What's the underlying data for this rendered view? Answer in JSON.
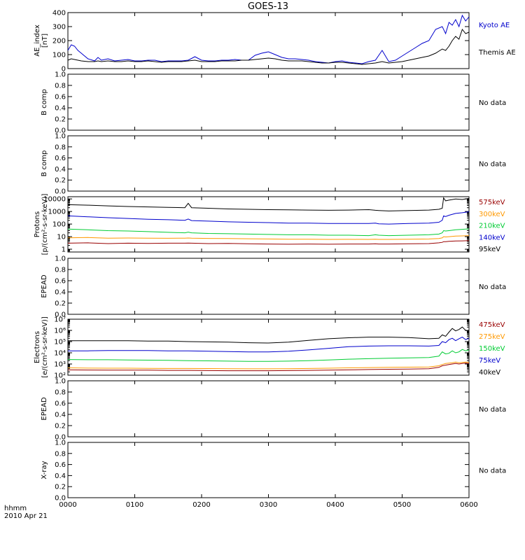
{
  "title": "GOES-13",
  "footer": {
    "line1": "hhmm",
    "line2": "2010 Apr 21"
  },
  "chart_data": [
    {
      "type": "line",
      "panel": "ae",
      "ylabel": [
        "AE_index",
        "[nT]"
      ],
      "ylim": [
        0,
        400
      ],
      "yscale": "linear",
      "yticks": [
        "0",
        "100",
        "200",
        "300",
        "400"
      ],
      "ytick_values": [
        0,
        100,
        200,
        300,
        400
      ],
      "x": [
        0,
        5,
        10,
        15,
        20,
        30,
        40,
        45,
        50,
        60,
        70,
        80,
        90,
        100,
        110,
        120,
        130,
        140,
        150,
        160,
        170,
        180,
        190,
        200,
        210,
        220,
        230,
        240,
        250,
        260,
        270,
        280,
        290,
        300,
        310,
        320,
        330,
        340,
        350,
        360,
        370,
        380,
        390,
        400,
        410,
        420,
        430,
        440,
        450,
        460,
        470,
        480,
        490,
        500,
        510,
        520,
        530,
        540,
        550,
        560,
        565,
        570,
        575,
        580,
        585,
        590,
        595,
        600
      ],
      "series": [
        {
          "name": "Kyoto AE",
          "color": "#0000cc",
          "values": [
            130,
            170,
            160,
            130,
            110,
            70,
            55,
            80,
            60,
            70,
            55,
            60,
            65,
            55,
            55,
            60,
            60,
            50,
            55,
            55,
            55,
            60,
            85,
            60,
            55,
            55,
            60,
            60,
            65,
            60,
            60,
            95,
            110,
            120,
            100,
            80,
            70,
            70,
            65,
            60,
            50,
            45,
            40,
            50,
            55,
            45,
            40,
            35,
            50,
            60,
            130,
            50,
            60,
            90,
            120,
            150,
            180,
            200,
            280,
            300,
            250,
            330,
            310,
            350,
            300,
            380,
            340,
            370
          ]
        },
        {
          "name": "Themis AE",
          "color": "#000000",
          "values": [
            60,
            70,
            65,
            60,
            55,
            50,
            50,
            55,
            50,
            55,
            50,
            50,
            55,
            50,
            50,
            55,
            50,
            45,
            50,
            50,
            50,
            55,
            60,
            50,
            50,
            50,
            55,
            55,
            55,
            60,
            60,
            65,
            70,
            75,
            70,
            60,
            55,
            55,
            55,
            50,
            45,
            40,
            40,
            45,
            45,
            40,
            35,
            30,
            35,
            40,
            50,
            40,
            45,
            50,
            60,
            70,
            80,
            90,
            110,
            140,
            130,
            160,
            200,
            230,
            210,
            280,
            250,
            260
          ]
        }
      ]
    },
    {
      "type": "line",
      "panel": "nodata",
      "ylabel": [
        "B comp"
      ],
      "ylim": [
        0,
        1
      ],
      "yticks": [
        "0.0",
        "0.2",
        "0.4",
        "0.6",
        "0.8",
        "1.0"
      ],
      "ytick_values": [
        0,
        0.2,
        0.4,
        0.6,
        0.8,
        1.0
      ],
      "note": "No data"
    },
    {
      "type": "line",
      "panel": "nodata",
      "ylabel": [
        "B comp"
      ],
      "ylim": [
        0,
        1
      ],
      "yticks": [
        "0.0",
        "0.2",
        "0.4",
        "0.6",
        "0.8",
        "1.0"
      ],
      "ytick_values": [
        0,
        0.2,
        0.4,
        0.6,
        0.8,
        1.0
      ],
      "note": "No data"
    },
    {
      "type": "line",
      "panel": "protons",
      "ylabel": [
        "Protons",
        "[p/(cm²-s-sr-keV)]"
      ],
      "ylim": [
        0.6,
        15000
      ],
      "yscale": "log",
      "yticks": [
        "1",
        "10",
        "100",
        "1000",
        "10000"
      ],
      "ytick_values": [
        1,
        10,
        100,
        1000,
        10000
      ],
      "x": [
        0,
        30,
        60,
        90,
        120,
        150,
        175,
        180,
        185,
        210,
        240,
        270,
        300,
        330,
        360,
        390,
        420,
        450,
        460,
        465,
        480,
        510,
        540,
        555,
        560,
        562,
        565,
        570,
        580,
        590,
        600
      ],
      "series": [
        {
          "name": "575keV",
          "color": "#990000",
          "values": [
            3,
            3.2,
            2.8,
            3,
            2.9,
            3,
            3,
            3.1,
            3,
            2.8,
            2.9,
            2.7,
            2.6,
            2.5,
            2.6,
            2.5,
            2.6,
            2.6,
            2.7,
            2.6,
            2.6,
            2.7,
            2.8,
            3.2,
            3.5,
            4,
            4,
            4.2,
            4.5,
            4.6,
            4.8
          ]
        },
        {
          "name": "300keV",
          "color": "#ff9900",
          "values": [
            8,
            8.5,
            7.5,
            7.8,
            7.5,
            7.4,
            7.6,
            7.8,
            7.6,
            7.2,
            7,
            6.8,
            6.5,
            6.3,
            6.2,
            6.0,
            6.1,
            6.0,
            6.2,
            6.0,
            6.0,
            6.2,
            6.5,
            7,
            8,
            10,
            9.5,
            10,
            11,
            11.5,
            12
          ]
        },
        {
          "name": "210keV",
          "color": "#00cc33",
          "values": [
            40,
            35,
            30,
            28,
            25,
            22,
            20,
            23,
            20,
            18,
            17,
            16,
            15,
            14,
            14,
            13,
            13,
            12,
            14,
            13,
            12,
            13,
            14,
            16,
            20,
            30,
            28,
            30,
            35,
            38,
            42
          ]
        },
        {
          "name": "140keV",
          "color": "#0000cc",
          "values": [
            450,
            380,
            320,
            280,
            240,
            220,
            200,
            250,
            190,
            170,
            150,
            140,
            130,
            120,
            120,
            110,
            110,
            110,
            120,
            105,
            100,
            110,
            120,
            140,
            200,
            450,
            400,
            500,
            700,
            800,
            950
          ]
        },
        {
          "name": "95keV",
          "color": "#000000",
          "values": [
            3500,
            3200,
            2800,
            2500,
            2300,
            2100,
            2000,
            4500,
            2000,
            1800,
            1600,
            1500,
            1400,
            1350,
            1300,
            1250,
            1300,
            1400,
            1250,
            1200,
            1100,
            1200,
            1300,
            1500,
            1800,
            12000,
            7000,
            8000,
            10000,
            9000,
            11000
          ]
        }
      ]
    },
    {
      "type": "line",
      "panel": "nodata",
      "ylabel": [
        "EPEAD"
      ],
      "ylim": [
        0,
        1
      ],
      "yticks": [
        "0.0",
        "0.2",
        "0.4",
        "0.6",
        "0.8",
        "1.0"
      ],
      "ytick_values": [
        0,
        0.2,
        0.4,
        0.6,
        0.8,
        1.0
      ],
      "note": "No data"
    },
    {
      "type": "line",
      "panel": "electrons",
      "ylabel": [
        "Electrons",
        "[e/(cm²-s-sr-keV)]"
      ],
      "ylim": [
        100,
        10000000
      ],
      "yscale": "log",
      "yticks": [
        "10²",
        "10³",
        "10⁴",
        "10⁵",
        "10⁶",
        "10⁷"
      ],
      "ytick_values": [
        100,
        1000,
        10000,
        100000,
        1000000,
        10000000
      ],
      "x": [
        0,
        30,
        60,
        90,
        120,
        150,
        180,
        210,
        240,
        270,
        300,
        330,
        360,
        390,
        420,
        450,
        480,
        510,
        540,
        555,
        560,
        565,
        570,
        575,
        580,
        585,
        590,
        595,
        600
      ],
      "series": [
        {
          "name": "475keV",
          "color": "#990000",
          "values": [
            300,
            290,
            280,
            280,
            280,
            270,
            270,
            260,
            250,
            250,
            250,
            260,
            270,
            280,
            300,
            320,
            340,
            350,
            380,
            500,
            700,
            800,
            900,
            1000,
            1100,
            1000,
            1100,
            1200,
            1100
          ]
        },
        {
          "name": "275keV",
          "color": "#ff9900",
          "values": [
            450,
            430,
            420,
            420,
            410,
            400,
            400,
            390,
            380,
            370,
            370,
            380,
            400,
            420,
            450,
            480,
            500,
            520,
            550,
            700,
            900,
            1100,
            1200,
            1300,
            1500,
            1300,
            1400,
            1500,
            1400
          ]
        },
        {
          "name": "150keV",
          "color": "#00cc33",
          "values": [
            2500,
            2400,
            2400,
            2300,
            2200,
            2100,
            2000,
            1900,
            1800,
            1700,
            1700,
            1800,
            2000,
            2300,
            2700,
            3000,
            3300,
            3500,
            3800,
            5000,
            12000,
            8000,
            9000,
            15000,
            10000,
            12000,
            20000,
            15000,
            18000
          ]
        },
        {
          "name": "75keV",
          "color": "#0000cc",
          "values": [
            15000,
            15000,
            16000,
            16000,
            16000,
            15000,
            15000,
            14000,
            13000,
            12000,
            12000,
            14000,
            18000,
            25000,
            35000,
            40000,
            42000,
            42000,
            40000,
            45000,
            100000,
            80000,
            150000,
            200000,
            120000,
            180000,
            250000,
            150000,
            200000
          ]
        },
        {
          "name": "40keV",
          "color": "#000000",
          "values": [
            120000,
            120000,
            120000,
            120000,
            110000,
            110000,
            100000,
            95000,
            90000,
            80000,
            75000,
            90000,
            130000,
            180000,
            220000,
            250000,
            250000,
            230000,
            180000,
            200000,
            400000,
            300000,
            700000,
            1500000,
            900000,
            1200000,
            2000000,
            1000000,
            800000
          ]
        }
      ]
    },
    {
      "type": "line",
      "panel": "nodata",
      "ylabel": [
        "EPEAD"
      ],
      "ylim": [
        0,
        1
      ],
      "yticks": [
        "0.0",
        "0.2",
        "0.4",
        "0.6",
        "0.8",
        "1.0"
      ],
      "ytick_values": [
        0,
        0.2,
        0.4,
        0.6,
        0.8,
        1.0
      ],
      "note": "No data"
    },
    {
      "type": "line",
      "panel": "nodata",
      "ylabel": [
        "X-ray"
      ],
      "ylim": [
        0,
        1
      ],
      "yticks": [
        "0.0",
        "0.2",
        "0.4",
        "0.6",
        "0.8",
        "1.0"
      ],
      "ytick_values": [
        0,
        0.2,
        0.4,
        0.6,
        0.8,
        1.0
      ],
      "note": "No data"
    }
  ],
  "xaxis": {
    "xlim": [
      0,
      600
    ],
    "ticks": [
      "0000",
      "0100",
      "0200",
      "0300",
      "0400",
      "0500",
      "0600"
    ],
    "tick_values": [
      0,
      100,
      200,
      300,
      400,
      500,
      600
    ]
  }
}
